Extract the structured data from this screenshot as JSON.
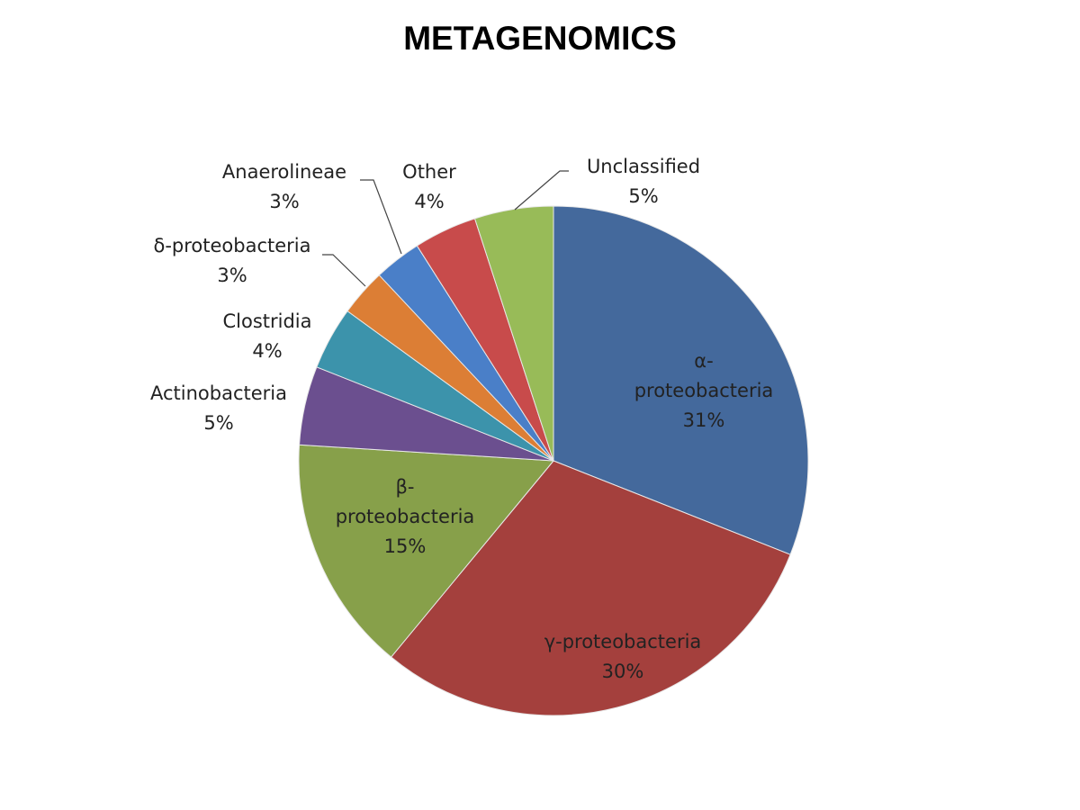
{
  "chart_data": {
    "type": "pie",
    "title": "METAGENOMICS",
    "start": "top, clockwise",
    "slices": [
      {
        "label": "α-proteobacteria",
        "display": [
          "α-",
          "proteobacteria",
          "31%"
        ],
        "value": 31,
        "color": "#44699c"
      },
      {
        "label": "γ-proteobacteria",
        "display": [
          "γ-proteobacteria",
          "30%"
        ],
        "value": 30,
        "color": "#a4403d"
      },
      {
        "label": "β-proteobacteria",
        "display": [
          "β-",
          "proteobacteria",
          "15%"
        ],
        "value": 15,
        "color": "#87a04a"
      },
      {
        "label": "Actinobacteria",
        "display": [
          "Actinobacteria",
          "5%"
        ],
        "value": 5,
        "color": "#6b4f8f"
      },
      {
        "label": "Clostridia",
        "display": [
          "Clostridia",
          "4%"
        ],
        "value": 4,
        "color": "#3c93ab"
      },
      {
        "label": "δ-proteobacteria",
        "display": [
          "δ-proteobacteria",
          "3%"
        ],
        "value": 3,
        "color": "#dc7e35"
      },
      {
        "label": "Anaerolineae",
        "display": [
          "Anaerolineae",
          "3%"
        ],
        "value": 3,
        "color": "#4a7fc8"
      },
      {
        "label": "Other",
        "display": [
          "Other",
          "4%"
        ],
        "value": 4,
        "color": "#c84b4b"
      },
      {
        "label": "Unclassified",
        "display": [
          "Unclassified",
          "5%"
        ],
        "value": 5,
        "color": "#98bb58"
      }
    ]
  }
}
